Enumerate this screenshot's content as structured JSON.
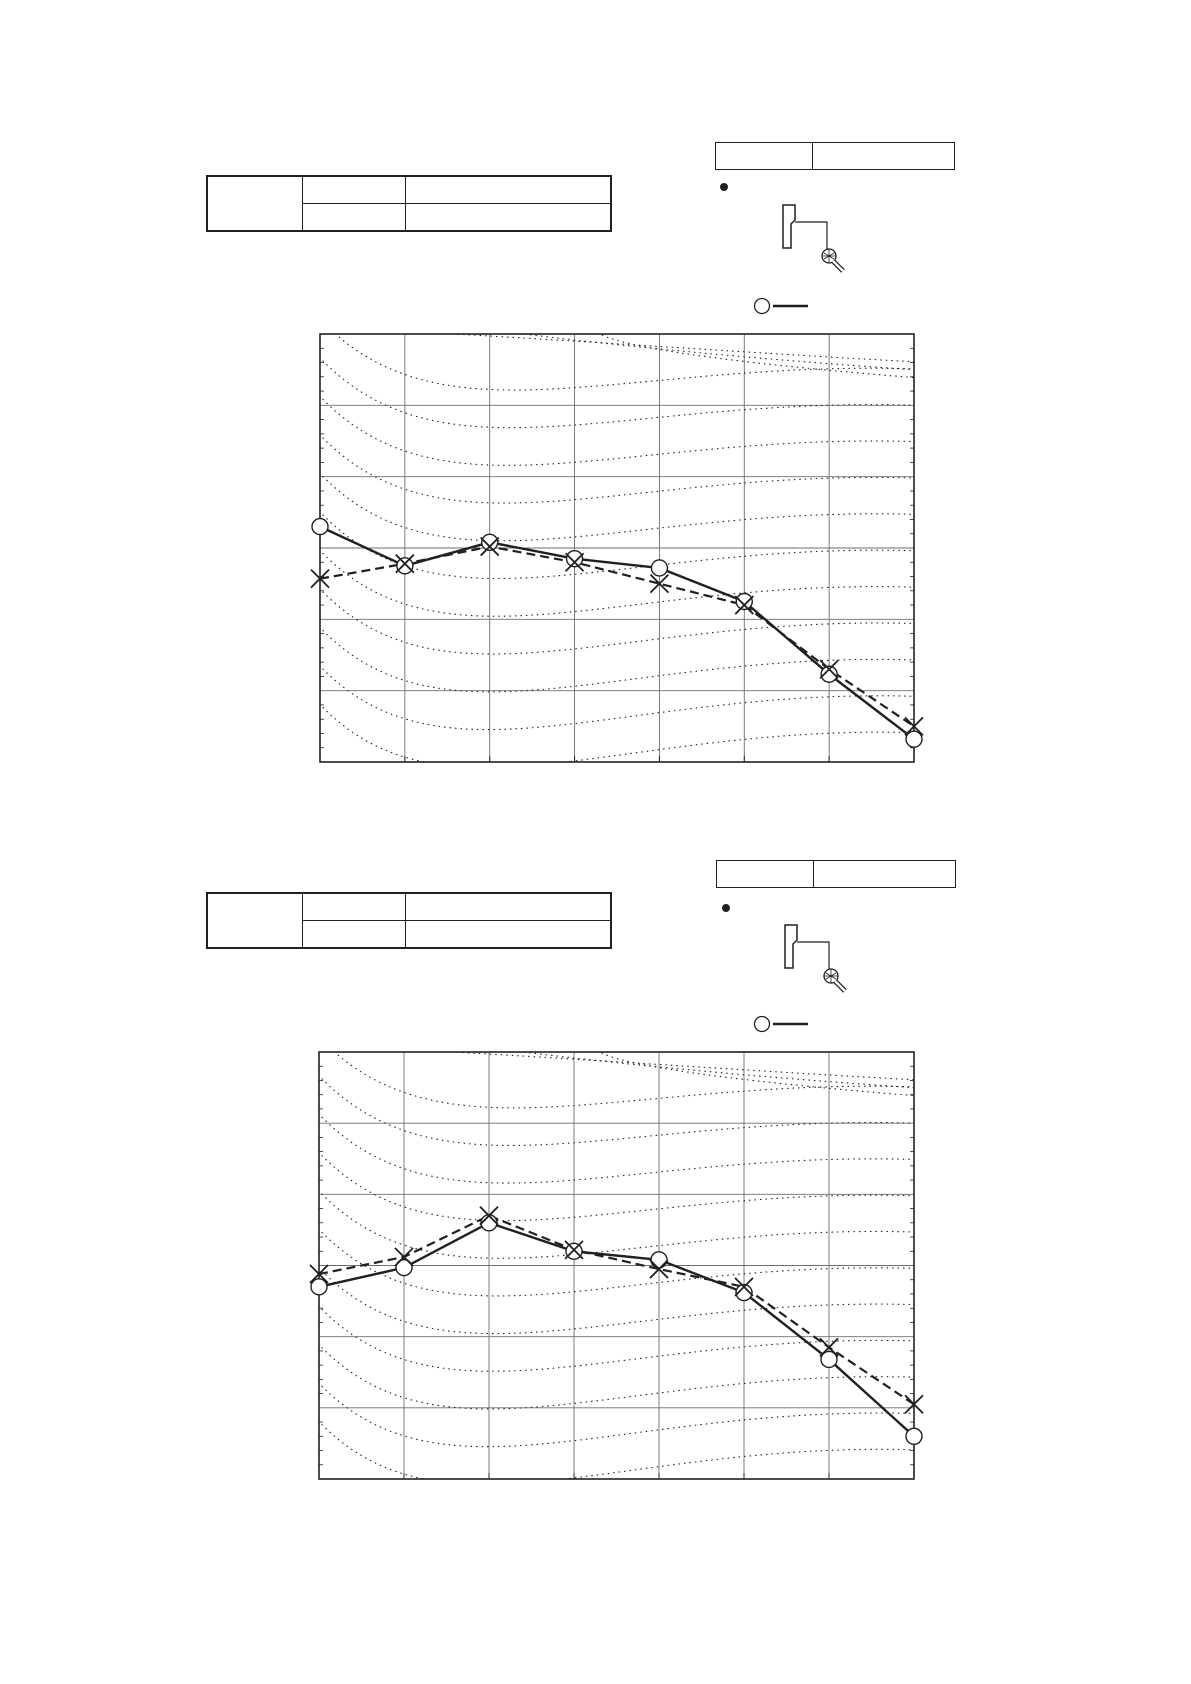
{
  "panels": [
    {
      "info_table": {
        "group_label": "",
        "rows": [
          [
            "",
            ""
          ],
          [
            "",
            ""
          ]
        ]
      },
      "mode_table": [
        "",
        ""
      ],
      "bullet_text": "",
      "legend": [
        {
          "marker": "circle",
          "line": "solid",
          "label": ""
        }
      ]
    },
    {
      "info_table": {
        "group_label": "",
        "rows": [
          [
            "",
            ""
          ],
          [
            "",
            ""
          ]
        ]
      },
      "mode_table": [
        "",
        ""
      ],
      "bullet_text": "",
      "legend": [
        {
          "marker": "circle",
          "line": "solid",
          "label": ""
        }
      ]
    }
  ],
  "chart_data": [
    {
      "type": "line",
      "title": "",
      "xlabel": "",
      "ylabel": "",
      "x": [
        0,
        1,
        2,
        3,
        4,
        5,
        6,
        7
      ],
      "xlim": [
        0,
        7
      ],
      "ylim": [
        0,
        6
      ],
      "grid": true,
      "background_curves": "dotted",
      "series": [
        {
          "marker": "circle",
          "line": "solid",
          "values": [
            3.3,
            2.75,
            3.08,
            2.85,
            2.72,
            2.25,
            1.23,
            0.32
          ]
        },
        {
          "marker": "cross",
          "line": "dashed",
          "values": [
            2.57,
            2.78,
            3.02,
            2.8,
            2.5,
            2.2,
            1.3,
            0.5
          ]
        }
      ]
    },
    {
      "type": "line",
      "title": "",
      "xlabel": "",
      "ylabel": "",
      "x": [
        0,
        1,
        2,
        3,
        4,
        5,
        6,
        7
      ],
      "xlim": [
        0,
        7
      ],
      "ylim": [
        0,
        6
      ],
      "grid": true,
      "background_curves": "dotted",
      "series": [
        {
          "marker": "circle",
          "line": "solid",
          "values": [
            2.7,
            2.97,
            3.6,
            3.2,
            3.08,
            2.62,
            1.68,
            0.6
          ]
        },
        {
          "marker": "cross",
          "line": "dashed",
          "values": [
            2.88,
            3.12,
            3.7,
            3.22,
            2.95,
            2.7,
            1.85,
            1.05
          ]
        }
      ]
    }
  ],
  "colors": {
    "ink": "#231f20",
    "grid": "#231f20",
    "mic": "#231f20"
  },
  "icons": [
    "speaker-unit-icon",
    "microphone-icon"
  ]
}
